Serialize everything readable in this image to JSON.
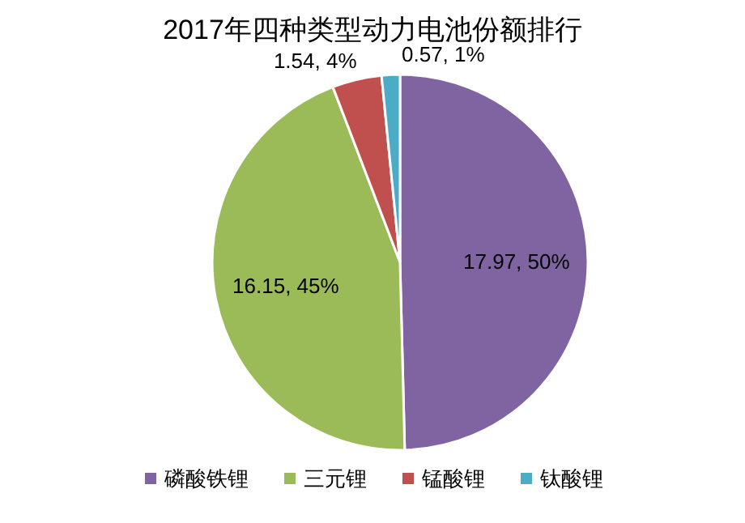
{
  "chart_data": {
    "type": "pie",
    "title": "2017年四种类型动力电池份额排行",
    "categories": [
      "磷酸铁锂",
      "三元锂",
      "锰酸锂",
      "钛酸锂"
    ],
    "values": [
      17.97,
      16.15,
      1.54,
      0.57
    ],
    "colors": [
      "#8064a2",
      "#9bbb59",
      "#c0504d",
      "#4bacc6"
    ],
    "value_labels": [
      "17.97, 50%",
      "16.15, 45%",
      "1.54, 4%",
      "0.57, 1%"
    ],
    "legend": "bottom"
  }
}
